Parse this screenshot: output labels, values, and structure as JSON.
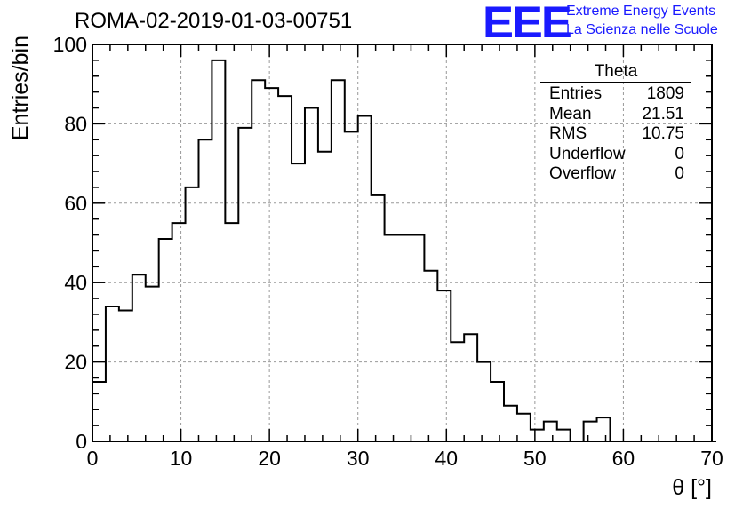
{
  "header": {
    "title": "ROMA-02-2019-01-03-00751",
    "logo_text": "EEE",
    "brand_line1": "Extreme Energy Events",
    "brand_line2": "La Scienza nelle Scuole"
  },
  "stats_box": {
    "name": "Theta",
    "rows": [
      {
        "label": "Entries",
        "value": "1809"
      },
      {
        "label": "Mean",
        "value": "21.51"
      },
      {
        "label": "RMS",
        "value": "10.75"
      },
      {
        "label": "Underflow",
        "value": "0"
      },
      {
        "label": "Overflow",
        "value": "0"
      }
    ]
  },
  "colors": {
    "line": "#000000",
    "grid": "#999999",
    "brand": "#1a1aff"
  },
  "chart_data": {
    "type": "bar",
    "style": "step-histogram",
    "title": "ROMA-02-2019-01-03-00751",
    "xlabel": "θ [°]",
    "ylabel": "Entries/bin",
    "xlim": [
      0,
      70
    ],
    "ylim": [
      0,
      100
    ],
    "xticks": [
      0,
      10,
      20,
      30,
      40,
      50,
      60,
      70
    ],
    "yticks": [
      0,
      20,
      40,
      60,
      80,
      100
    ],
    "grid": true,
    "bin_width": 1.5,
    "bin_start": 0,
    "values": [
      15,
      34,
      33,
      42,
      39,
      51,
      55,
      64,
      76,
      96,
      55,
      79,
      91,
      89,
      87,
      70,
      84,
      73,
      91,
      78,
      82,
      62,
      52,
      52,
      52,
      43,
      38,
      25,
      27,
      20,
      15,
      9,
      7,
      3,
      5,
      3,
      0,
      5,
      6,
      0,
      0,
      0,
      0,
      0,
      0,
      0,
      0
    ]
  }
}
